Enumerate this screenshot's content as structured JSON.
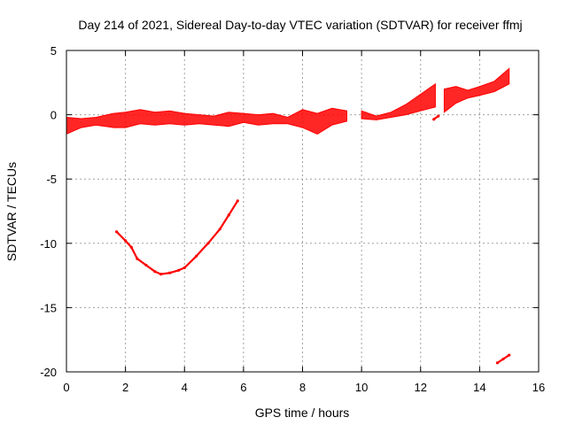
{
  "chart_data": {
    "type": "scatter",
    "title": "Day 214 of 2021, Sidereal Day-to-day VTEC variation (SDTVAR) for receiver ffmj",
    "xlabel": "GPS time / hours",
    "ylabel": "SDTVAR / TECUs",
    "xlim": [
      0,
      16
    ],
    "ylim": [
      -20,
      5
    ],
    "grid": true,
    "xticks": [
      0,
      2,
      4,
      6,
      8,
      10,
      12,
      14,
      16
    ],
    "yticks": [
      5,
      0,
      -5,
      -10,
      -15,
      -20
    ],
    "color": "#ff0000",
    "series": [
      {
        "name": "main-band",
        "kind": "band",
        "upper": [
          [
            0,
            -0.2
          ],
          [
            0.5,
            -0.3
          ],
          [
            1,
            -0.2
          ],
          [
            1.6,
            0.1
          ],
          [
            2,
            0.2
          ],
          [
            2.5,
            0.4
          ],
          [
            3,
            0.2
          ],
          [
            3.5,
            0.3
          ],
          [
            4,
            0.1
          ],
          [
            4.5,
            0.0
          ],
          [
            5,
            -0.1
          ],
          [
            5.5,
            0.2
          ],
          [
            6,
            0.1
          ],
          [
            6.5,
            0.0
          ],
          [
            7,
            0.1
          ],
          [
            7.5,
            -0.2
          ],
          [
            8,
            0.4
          ],
          [
            8.5,
            0.1
          ],
          [
            9,
            0.5
          ],
          [
            9.5,
            0.3
          ]
        ],
        "lower": [
          [
            0,
            -1.5
          ],
          [
            0.5,
            -1.0
          ],
          [
            1,
            -0.8
          ],
          [
            1.6,
            -1.0
          ],
          [
            2,
            -1.0
          ],
          [
            2.5,
            -0.7
          ],
          [
            3,
            -0.8
          ],
          [
            3.5,
            -0.7
          ],
          [
            4,
            -0.8
          ],
          [
            4.5,
            -0.7
          ],
          [
            5,
            -0.8
          ],
          [
            5.5,
            -0.9
          ],
          [
            6,
            -0.6
          ],
          [
            6.5,
            -0.8
          ],
          [
            7,
            -0.7
          ],
          [
            7.5,
            -0.7
          ],
          [
            8,
            -1.0
          ],
          [
            8.5,
            -1.5
          ],
          [
            9,
            -0.8
          ],
          [
            9.5,
            -0.5
          ]
        ]
      },
      {
        "name": "evening-band",
        "kind": "band",
        "upper": [
          [
            10.0,
            0.3
          ],
          [
            10.5,
            -0.1
          ],
          [
            11,
            0.2
          ],
          [
            11.5,
            0.8
          ],
          [
            12,
            1.6
          ],
          [
            12.5,
            2.4
          ]
        ],
        "lower": [
          [
            10.0,
            -0.3
          ],
          [
            10.5,
            -0.4
          ],
          [
            11,
            -0.2
          ],
          [
            11.5,
            0.0
          ],
          [
            12,
            0.3
          ],
          [
            12.5,
            0.6
          ]
        ]
      },
      {
        "name": "late-band",
        "kind": "band",
        "upper": [
          [
            12.8,
            2.0
          ],
          [
            13.2,
            2.2
          ],
          [
            13.6,
            1.9
          ],
          [
            14,
            2.2
          ],
          [
            14.5,
            2.6
          ],
          [
            15.0,
            3.6
          ]
        ],
        "lower": [
          [
            12.8,
            0.2
          ],
          [
            13.2,
            0.9
          ],
          [
            13.6,
            1.3
          ],
          [
            14,
            1.5
          ],
          [
            14.5,
            1.8
          ],
          [
            15.0,
            2.4
          ]
        ]
      },
      {
        "name": "dip-arc",
        "kind": "line",
        "points": [
          [
            1.7,
            -9.1
          ],
          [
            2.0,
            -9.8
          ],
          [
            2.2,
            -10.3
          ],
          [
            2.4,
            -11.2
          ],
          [
            2.7,
            -11.7
          ],
          [
            3.0,
            -12.2
          ],
          [
            3.2,
            -12.4
          ],
          [
            3.5,
            -12.3
          ],
          [
            3.8,
            -12.1
          ],
          [
            4.0,
            -11.9
          ],
          [
            4.4,
            -11.0
          ],
          [
            4.8,
            -10.0
          ],
          [
            5.2,
            -8.9
          ],
          [
            5.5,
            -7.8
          ],
          [
            5.8,
            -6.7
          ]
        ]
      },
      {
        "name": "low-tail",
        "kind": "line",
        "points": [
          [
            14.6,
            -19.3
          ],
          [
            14.8,
            -19.0
          ],
          [
            15.0,
            -18.7
          ]
        ]
      },
      {
        "name": "blip",
        "kind": "line",
        "points": [
          [
            12.45,
            -0.35
          ],
          [
            12.6,
            -0.1
          ]
        ]
      }
    ]
  }
}
